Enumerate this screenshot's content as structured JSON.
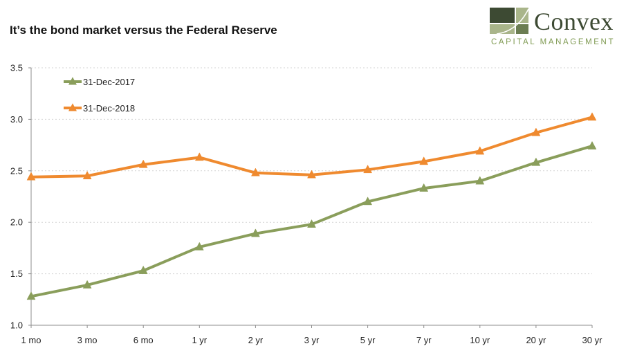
{
  "header": {
    "title": "It’s the bond market versus the Federal Reserve"
  },
  "logo": {
    "name": "Convex",
    "subtitle": "CAPITAL MANAGEMENT",
    "colors": {
      "dark": "#3d4a33",
      "mid": "#6b7d52",
      "light": "#a9b58a"
    }
  },
  "chart_data": {
    "type": "line",
    "title": "",
    "xlabel": "",
    "ylabel": "",
    "categories": [
      "1 mo",
      "3 mo",
      "6 mo",
      "1 yr",
      "2 yr",
      "3 yr",
      "5 yr",
      "7 yr",
      "10 yr",
      "20 yr",
      "30 yr"
    ],
    "ylim": [
      1.0,
      3.5
    ],
    "yticks": [
      "1.0",
      "1.5",
      "2.0",
      "2.5",
      "3.0",
      "3.5"
    ],
    "grid": true,
    "legend_position": "top-left",
    "series": [
      {
        "name": "31-Dec-2017",
        "color": "#8a9e5b",
        "marker": "triangle",
        "values": [
          1.28,
          1.39,
          1.53,
          1.76,
          1.89,
          1.98,
          2.2,
          2.33,
          2.4,
          2.58,
          2.74
        ]
      },
      {
        "name": "31-Dec-2018",
        "color": "#ef8a2f",
        "marker": "triangle",
        "values": [
          2.44,
          2.45,
          2.56,
          2.63,
          2.48,
          2.46,
          2.51,
          2.59,
          2.69,
          2.87,
          3.02
        ]
      }
    ]
  }
}
